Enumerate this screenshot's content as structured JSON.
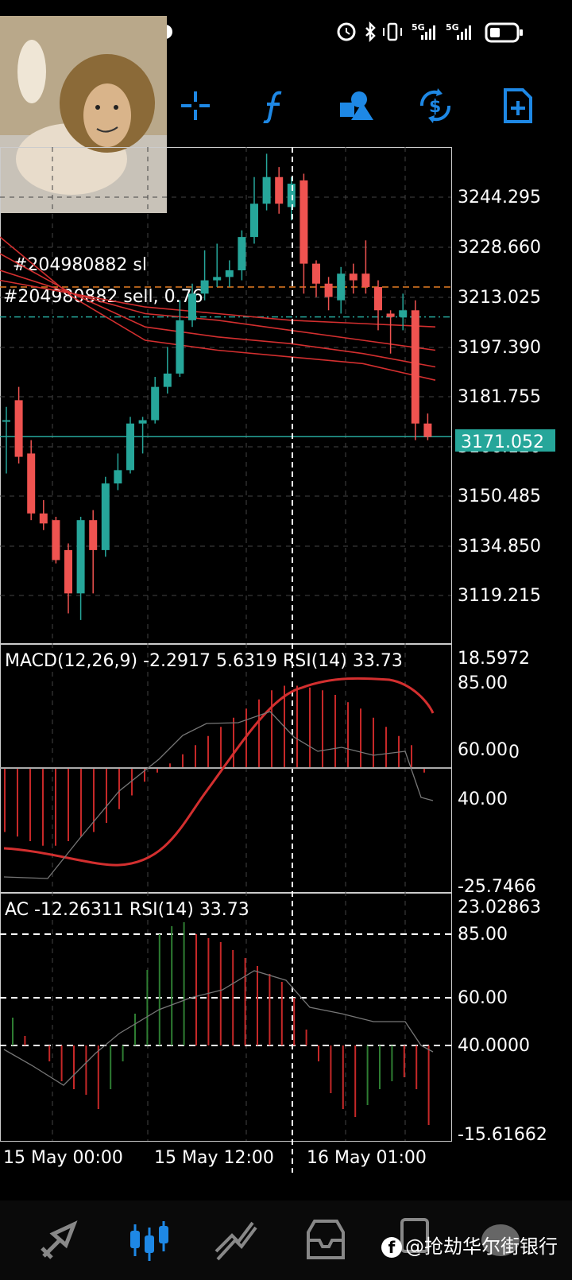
{
  "status_bar": {
    "net1": "5G",
    "net2": "5G"
  },
  "toolbar": {
    "icons": [
      "crosshair-icon",
      "indicator-f-icon",
      "objects-icon",
      "trade-icon",
      "new-order-icon"
    ],
    "accent": "#1e88e5"
  },
  "price_axis": {
    "labels": [
      "3244.295",
      "3228.660",
      "3213.025",
      "3197.390",
      "3181.755",
      "3166.120",
      "3150.485",
      "3134.850",
      "3119.215"
    ],
    "current_price": "3171.052",
    "current_color": "#26a69a"
  },
  "order_lines": {
    "sl_label": "#204980882 sl",
    "sell_label": "#204980882 sell, 0.76"
  },
  "macd_panel": {
    "title": "MACD(12,26,9) -2.2917 5.6319 RSI(14) 33.73",
    "top": "18.5972",
    "level85": "85.00",
    "level60": "60.00",
    "zero": "0",
    "level40": "40.00",
    "bottom": "-25.7466"
  },
  "ac_panel": {
    "title": "AC -12.26311 RSI(14) 33.73",
    "top": "23.02863",
    "level85": "85.00",
    "level60": "60.00",
    "level40": "40.0000",
    "bottom": "-15.61662"
  },
  "time_axis": {
    "labels": [
      "15 May 00:00",
      "15 May 12:00",
      "16 May 01:00"
    ]
  },
  "chart_data": {
    "type": "candlestick",
    "timeframe_note": "",
    "y_range": [
      3110,
      3258
    ],
    "candles": [
      {
        "o": 3176,
        "h": 3180,
        "l": 3160,
        "c": 3176,
        "dir": "up"
      },
      {
        "o": 3182,
        "h": 3186,
        "l": 3163,
        "c": 3165,
        "dir": "down"
      },
      {
        "o": 3166,
        "h": 3170,
        "l": 3146,
        "c": 3148,
        "dir": "down"
      },
      {
        "o": 3148,
        "h": 3152,
        "l": 3143,
        "c": 3145,
        "dir": "down"
      },
      {
        "o": 3146,
        "h": 3147,
        "l": 3133,
        "c": 3134,
        "dir": "down"
      },
      {
        "o": 3137,
        "h": 3139,
        "l": 3118,
        "c": 3124,
        "dir": "down"
      },
      {
        "o": 3124,
        "h": 3147,
        "l": 3116,
        "c": 3146,
        "dir": "up"
      },
      {
        "o": 3146,
        "h": 3149,
        "l": 3124,
        "c": 3137,
        "dir": "down"
      },
      {
        "o": 3137,
        "h": 3159,
        "l": 3135,
        "c": 3157,
        "dir": "up"
      },
      {
        "o": 3157,
        "h": 3166,
        "l": 3155,
        "c": 3161,
        "dir": "up"
      },
      {
        "o": 3161,
        "h": 3177,
        "l": 3160,
        "c": 3175,
        "dir": "up"
      },
      {
        "o": 3175,
        "h": 3177,
        "l": 3166,
        "c": 3176,
        "dir": "up"
      },
      {
        "o": 3176,
        "h": 3189,
        "l": 3175,
        "c": 3186,
        "dir": "up"
      },
      {
        "o": 3186,
        "h": 3198,
        "l": 3184,
        "c": 3190,
        "dir": "up"
      },
      {
        "o": 3190,
        "h": 3212,
        "l": 3189,
        "c": 3206,
        "dir": "up"
      },
      {
        "o": 3206,
        "h": 3217,
        "l": 3204,
        "c": 3214,
        "dir": "up"
      },
      {
        "o": 3214,
        "h": 3227,
        "l": 3212,
        "c": 3218,
        "dir": "up"
      },
      {
        "o": 3218,
        "h": 3229,
        "l": 3216,
        "c": 3219,
        "dir": "up"
      },
      {
        "o": 3219,
        "h": 3224,
        "l": 3216,
        "c": 3221,
        "dir": "up"
      },
      {
        "o": 3221,
        "h": 3233,
        "l": 3218,
        "c": 3231,
        "dir": "up"
      },
      {
        "o": 3231,
        "h": 3249,
        "l": 3229,
        "c": 3241,
        "dir": "up"
      },
      {
        "o": 3241,
        "h": 3256,
        "l": 3239,
        "c": 3249,
        "dir": "up"
      },
      {
        "o": 3249,
        "h": 3252,
        "l": 3238,
        "c": 3241,
        "dir": "down"
      },
      {
        "o": 3240,
        "h": 3249,
        "l": 3236,
        "c": 3247,
        "dir": "up"
      },
      {
        "o": 3248,
        "h": 3250,
        "l": 3214,
        "c": 3223,
        "dir": "down"
      },
      {
        "o": 3223,
        "h": 3224,
        "l": 3213,
        "c": 3217,
        "dir": "down"
      },
      {
        "o": 3217,
        "h": 3219,
        "l": 3209,
        "c": 3213,
        "dir": "down"
      },
      {
        "o": 3212,
        "h": 3222,
        "l": 3208,
        "c": 3220,
        "dir": "up"
      },
      {
        "o": 3220,
        "h": 3223,
        "l": 3214,
        "c": 3218,
        "dir": "down"
      },
      {
        "o": 3220,
        "h": 3230,
        "l": 3214,
        "c": 3216,
        "dir": "down"
      },
      {
        "o": 3216,
        "h": 3218,
        "l": 3203,
        "c": 3209,
        "dir": "down"
      },
      {
        "o": 3208,
        "h": 3209,
        "l": 3196,
        "c": 3207,
        "dir": "down"
      },
      {
        "o": 3207,
        "h": 3214,
        "l": 3203,
        "c": 3209,
        "dir": "up"
      },
      {
        "o": 3209,
        "h": 3212,
        "l": 3170,
        "c": 3175,
        "dir": "down"
      },
      {
        "o": 3175,
        "h": 3178,
        "l": 3170,
        "c": 3171,
        "dir": "down"
      }
    ],
    "moving_averages": [
      [
        3218,
        3214,
        3210,
        3208,
        3206,
        3205,
        3204
      ],
      [
        3221,
        3214,
        3208,
        3206,
        3203,
        3200,
        3197
      ],
      [
        3226,
        3214,
        3204,
        3201,
        3199,
        3196,
        3192
      ],
      [
        3231,
        3213,
        3200,
        3197,
        3195,
        3193,
        3188
      ]
    ],
    "hlines": {
      "sl": 3216,
      "sell": 3207,
      "current": 3171.052
    },
    "colors": {
      "up": "#26a69a",
      "down": "#ef5350",
      "ma": "#d32f2f",
      "grid": "#444"
    }
  }
}
